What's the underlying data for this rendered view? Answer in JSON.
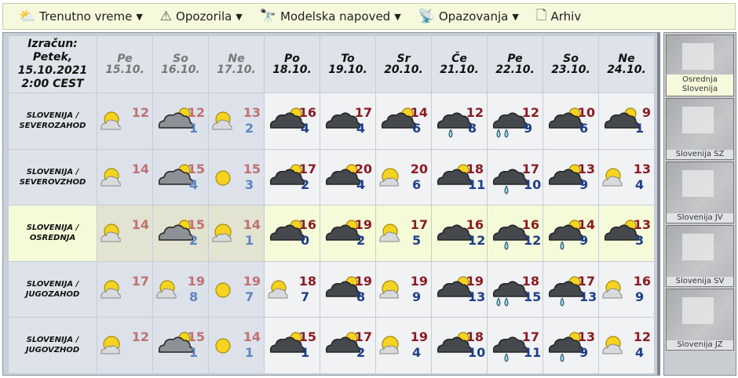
{
  "nav": [
    {
      "label": "Trenutno vreme",
      "icon": "cloud-sun-icon",
      "dropdown": true
    },
    {
      "label": "Opozorila",
      "icon": "warning-icon",
      "dropdown": true
    },
    {
      "label": "Modelska napoved",
      "icon": "binoculars-icon",
      "dropdown": true
    },
    {
      "label": "Opazovanja",
      "icon": "telescope-icon",
      "dropdown": true
    },
    {
      "label": "Arhiv",
      "icon": "document-icon",
      "dropdown": false
    }
  ],
  "header": {
    "izracun": [
      "Izračun:",
      "Petek,",
      "15.10.2021",
      "2:00 CEST"
    ]
  },
  "days": [
    {
      "day": "Pe",
      "date": "15.10.",
      "past": true
    },
    {
      "day": "So",
      "date": "16.10.",
      "past": true
    },
    {
      "day": "Ne",
      "date": "17.10.",
      "past": true
    },
    {
      "day": "Po",
      "date": "18.10."
    },
    {
      "day": "To",
      "date": "19.10."
    },
    {
      "day": "Sr",
      "date": "20.10."
    },
    {
      "day": "Če",
      "date": "21.10."
    },
    {
      "day": "Pe",
      "date": "22.10."
    },
    {
      "day": "So",
      "date": "23.10."
    },
    {
      "day": "Ne",
      "date": "24.10."
    }
  ],
  "regions": [
    {
      "name": [
        "SLOVENIJA /",
        "SEVEROZAHOD"
      ],
      "cells": [
        [
          "partly",
          "12",
          ""
        ],
        [
          "cloud-sun",
          "12",
          "1"
        ],
        [
          "partly",
          "13",
          "2"
        ],
        [
          "cloud-sun",
          "16",
          "4"
        ],
        [
          "cloud",
          "17",
          "4"
        ],
        [
          "cloud-sun",
          "14",
          "6"
        ],
        [
          "rain",
          "12",
          "8"
        ],
        [
          "heavy-rain",
          "12",
          "9"
        ],
        [
          "cloud-sun",
          "10",
          "6"
        ],
        [
          "cloud-sun",
          "9",
          "1"
        ]
      ]
    },
    {
      "name": [
        "SLOVENIJA /",
        "SEVEROVZHOD"
      ],
      "cells": [
        [
          "partly",
          "14",
          ""
        ],
        [
          "cloud-sun",
          "15",
          "4"
        ],
        [
          "sun",
          "15",
          "3"
        ],
        [
          "cloud-sun",
          "17",
          "2"
        ],
        [
          "cloud-sun",
          "20",
          "4"
        ],
        [
          "mostly-sunny",
          "20",
          "6"
        ],
        [
          "cloud-sun",
          "18",
          "11"
        ],
        [
          "rain",
          "17",
          "10"
        ],
        [
          "cloud-sun",
          "13",
          "9"
        ],
        [
          "partly",
          "13",
          "4"
        ]
      ]
    },
    {
      "name": [
        "SLOVENIJA /",
        "OSREDNJA"
      ],
      "selected": true,
      "cells": [
        [
          "partly",
          "14",
          ""
        ],
        [
          "cloud-sun",
          "15",
          "2"
        ],
        [
          "mostly-sunny",
          "14",
          "1"
        ],
        [
          "cloud-sun",
          "16",
          "0"
        ],
        [
          "cloud-sun",
          "19",
          "2"
        ],
        [
          "partly",
          "17",
          "5"
        ],
        [
          "cloud",
          "16",
          "12"
        ],
        [
          "rain",
          "16",
          "12"
        ],
        [
          "rain-sun",
          "14",
          "9"
        ],
        [
          "cloud-sun",
          "13",
          "3"
        ]
      ]
    },
    {
      "name": [
        "SLOVENIJA /",
        "JUGOZAHOD"
      ],
      "cells": [
        [
          "partly",
          "17",
          ""
        ],
        [
          "partly",
          "19",
          "8"
        ],
        [
          "sun",
          "19",
          "7"
        ],
        [
          "partly",
          "18",
          "7"
        ],
        [
          "cloud-sun",
          "19",
          "8"
        ],
        [
          "mostly-sunny",
          "19",
          "9"
        ],
        [
          "cloud-sun",
          "19",
          "13"
        ],
        [
          "heavy-rain",
          "18",
          "15"
        ],
        [
          "rain-sun",
          "17",
          "13"
        ],
        [
          "partly",
          "16",
          "9"
        ]
      ]
    },
    {
      "name": [
        "SLOVENIJA /",
        "JUGOVZHOD"
      ],
      "cells": [
        [
          "mostly-sunny",
          "12",
          ""
        ],
        [
          "cloud-sun",
          "15",
          "1"
        ],
        [
          "sun",
          "14",
          "1"
        ],
        [
          "cloud-sun",
          "15",
          "1"
        ],
        [
          "cloud-sun",
          "17",
          "2"
        ],
        [
          "mostly-sunny",
          "19",
          "4"
        ],
        [
          "cloud-sun",
          "18",
          "10"
        ],
        [
          "rain",
          "17",
          "11"
        ],
        [
          "rain-sun",
          "13",
          "9"
        ],
        [
          "partly",
          "12",
          "4"
        ]
      ]
    }
  ],
  "sidebar": [
    {
      "label": "Osrednja Slovenija",
      "selected": true
    },
    {
      "label": "Slovenija SZ"
    },
    {
      "label": "Slovenija JV"
    },
    {
      "label": "Slovenija SV"
    },
    {
      "label": "Slovenija JZ"
    }
  ],
  "colors": {
    "tmax": "#8a1c24",
    "tmin": "#1f3f8a",
    "nav_bg": "#f6f9dc",
    "selected_row": "#f5fbd9"
  }
}
